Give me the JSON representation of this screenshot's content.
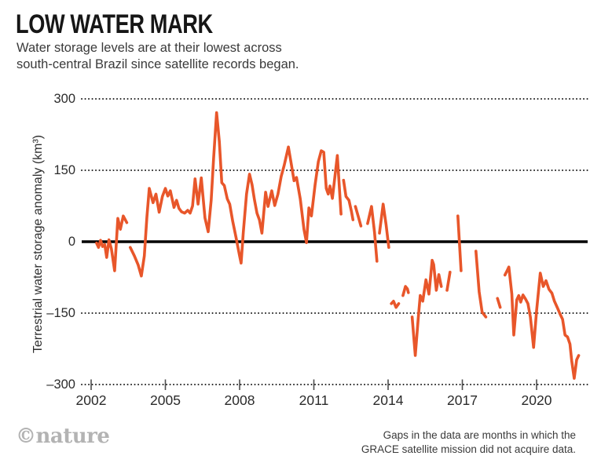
{
  "header": {
    "title": "LOW WATER MARK",
    "subtitle_line1": "Water storage levels are at their lowest across",
    "subtitle_line2": "south-central Brazil since satellite records began."
  },
  "footer": {
    "note_line1": "Gaps in the data are months in which the",
    "note_line2": "GRACE satellite mission did not acquire data.",
    "logo": "©nature"
  },
  "chart_data": {
    "type": "line",
    "title": "LOW WATER MARK",
    "ylabel": "Terrestrial water storage anomaly (km³)",
    "xlabel": "",
    "line_color": "#e8562a",
    "zero_line_color": "#000000",
    "grid": "dotted horizontal gridlines, solid zero line",
    "legend": "none",
    "xlim": [
      2001.65,
      2021.95
    ],
    "ylim": [
      -300,
      300
    ],
    "x_ticks": [
      {
        "label": "2002",
        "year": 2002
      },
      {
        "label": "2005",
        "year": 2005
      },
      {
        "label": "2008",
        "year": 2008
      },
      {
        "label": "2011",
        "year": 2011
      },
      {
        "label": "2014",
        "year": 2014
      },
      {
        "label": "2017",
        "year": 2017
      },
      {
        "label": "2020",
        "year": 2020
      }
    ],
    "y_ticks": [
      {
        "label": "300",
        "value": 300
      },
      {
        "label": "150",
        "value": 150
      },
      {
        "label": "0",
        "value": 0
      },
      {
        "label": "–150",
        "value": -150
      },
      {
        "label": "–300",
        "value": -300
      }
    ],
    "segments_note": "Each segment is a continuous run of monthly GRACE data; breaks between segments are months with no data.",
    "segments": [
      [
        [
          2002.22,
          -3
        ],
        [
          2002.3,
          -12
        ],
        [
          2002.38,
          3
        ],
        [
          2002.46,
          -10
        ],
        [
          2002.55,
          -6
        ],
        [
          2002.63,
          -33
        ],
        [
          2002.72,
          4
        ],
        [
          2002.82,
          -15
        ],
        [
          2002.95,
          -61
        ],
        [
          2003.08,
          49
        ],
        [
          2003.18,
          26
        ],
        [
          2003.3,
          54
        ],
        [
          2003.44,
          40
        ]
      ],
      [
        [
          2003.58,
          -12
        ],
        [
          2003.75,
          -30
        ],
        [
          2003.9,
          -49
        ],
        [
          2004.03,
          -72
        ],
        [
          2004.15,
          -30
        ],
        [
          2004.25,
          50
        ],
        [
          2004.35,
          112
        ],
        [
          2004.5,
          82
        ],
        [
          2004.62,
          100
        ],
        [
          2004.75,
          62
        ],
        [
          2004.88,
          95
        ],
        [
          2005.0,
          112
        ],
        [
          2005.1,
          96
        ],
        [
          2005.2,
          107
        ],
        [
          2005.35,
          72
        ],
        [
          2005.45,
          87
        ],
        [
          2005.55,
          70
        ],
        [
          2005.65,
          63
        ],
        [
          2005.78,
          60
        ],
        [
          2005.9,
          66
        ],
        [
          2006.0,
          60
        ],
        [
          2006.1,
          75
        ],
        [
          2006.2,
          132
        ],
        [
          2006.32,
          79
        ],
        [
          2006.45,
          134
        ],
        [
          2006.6,
          50
        ],
        [
          2006.73,
          21
        ],
        [
          2006.85,
          87
        ],
        [
          2006.95,
          175
        ],
        [
          2007.07,
          271
        ],
        [
          2007.18,
          210
        ],
        [
          2007.28,
          124
        ],
        [
          2007.38,
          118
        ],
        [
          2007.5,
          90
        ],
        [
          2007.6,
          79
        ],
        [
          2007.72,
          43
        ],
        [
          2007.85,
          10
        ],
        [
          2008.0,
          -30
        ],
        [
          2008.06,
          -45
        ],
        [
          2008.15,
          20
        ],
        [
          2008.28,
          100
        ],
        [
          2008.4,
          142
        ],
        [
          2008.5,
          120
        ],
        [
          2008.6,
          88
        ],
        [
          2008.7,
          60
        ],
        [
          2008.8,
          46
        ],
        [
          2008.9,
          18
        ],
        [
          2009.05,
          104
        ],
        [
          2009.15,
          74
        ],
        [
          2009.3,
          107
        ],
        [
          2009.42,
          76
        ],
        [
          2009.55,
          100
        ],
        [
          2009.68,
          137
        ],
        [
          2009.8,
          160
        ],
        [
          2009.97,
          199
        ],
        [
          2010.1,
          160
        ],
        [
          2010.2,
          128
        ],
        [
          2010.3,
          135
        ],
        [
          2010.45,
          90
        ],
        [
          2010.6,
          26
        ],
        [
          2010.7,
          -2
        ],
        [
          2010.8,
          71
        ],
        [
          2010.9,
          54
        ],
        [
          2011.05,
          120
        ],
        [
          2011.18,
          168
        ],
        [
          2011.3,
          191
        ],
        [
          2011.4,
          188
        ],
        [
          2011.5,
          112
        ],
        [
          2011.58,
          100
        ],
        [
          2011.65,
          117
        ],
        [
          2011.75,
          91
        ],
        [
          2011.95,
          181
        ],
        [
          2012.1,
          58
        ]
      ],
      [
        [
          2012.2,
          129
        ],
        [
          2012.3,
          95
        ],
        [
          2012.42,
          87
        ],
        [
          2012.52,
          63
        ],
        [
          2012.58,
          46
        ]
      ],
      [
        [
          2012.68,
          74
        ],
        [
          2012.8,
          52
        ],
        [
          2012.9,
          33
        ]
      ],
      [
        [
          2013.17,
          38
        ],
        [
          2013.33,
          74
        ],
        [
          2013.45,
          20
        ],
        [
          2013.55,
          -41
        ]
      ],
      [
        [
          2013.65,
          18
        ],
        [
          2013.8,
          79
        ],
        [
          2013.92,
          35
        ],
        [
          2014.03,
          -12
        ]
      ],
      [
        [
          2014.13,
          -130
        ],
        [
          2014.22,
          -125
        ],
        [
          2014.32,
          -138
        ],
        [
          2014.43,
          -130
        ]
      ],
      [
        [
          2014.6,
          -113
        ],
        [
          2014.7,
          -94
        ],
        [
          2014.78,
          -99
        ],
        [
          2014.82,
          -107
        ]
      ],
      [
        [
          2014.97,
          -158
        ],
        [
          2015.1,
          -239
        ],
        [
          2015.22,
          -160
        ],
        [
          2015.3,
          -113
        ],
        [
          2015.4,
          -125
        ],
        [
          2015.53,
          -80
        ],
        [
          2015.65,
          -110
        ],
        [
          2015.78,
          -39
        ],
        [
          2015.84,
          -48
        ],
        [
          2015.95,
          -102
        ],
        [
          2016.05,
          -69
        ],
        [
          2016.15,
          -94
        ]
      ],
      [
        [
          2016.38,
          -102
        ],
        [
          2016.5,
          -64
        ]
      ],
      [
        [
          2016.82,
          54
        ],
        [
          2016.95,
          -61
        ]
      ],
      [
        [
          2017.55,
          -20
        ],
        [
          2017.68,
          -105
        ],
        [
          2017.8,
          -148
        ],
        [
          2017.95,
          -158
        ]
      ],
      [
        [
          2018.42,
          -119
        ],
        [
          2018.53,
          -138
        ]
      ],
      [
        [
          2018.72,
          -70
        ],
        [
          2018.8,
          -62
        ],
        [
          2018.88,
          -53
        ],
        [
          2019.0,
          -110
        ],
        [
          2019.08,
          -196
        ],
        [
          2019.2,
          -122
        ],
        [
          2019.28,
          -113
        ],
        [
          2019.36,
          -127
        ],
        [
          2019.45,
          -112
        ],
        [
          2019.55,
          -120
        ],
        [
          2019.65,
          -130
        ],
        [
          2019.75,
          -158
        ],
        [
          2019.88,
          -222
        ],
        [
          2020.0,
          -145
        ],
        [
          2020.15,
          -66
        ],
        [
          2020.27,
          -94
        ],
        [
          2020.38,
          -82
        ],
        [
          2020.5,
          -100
        ],
        [
          2020.62,
          -108
        ],
        [
          2020.72,
          -125
        ],
        [
          2020.85,
          -140
        ],
        [
          2020.95,
          -152
        ],
        [
          2021.05,
          -163
        ],
        [
          2021.15,
          -196
        ],
        [
          2021.25,
          -200
        ],
        [
          2021.35,
          -215
        ],
        [
          2021.42,
          -250
        ],
        [
          2021.52,
          -287
        ],
        [
          2021.62,
          -248
        ],
        [
          2021.7,
          -239
        ]
      ]
    ]
  }
}
